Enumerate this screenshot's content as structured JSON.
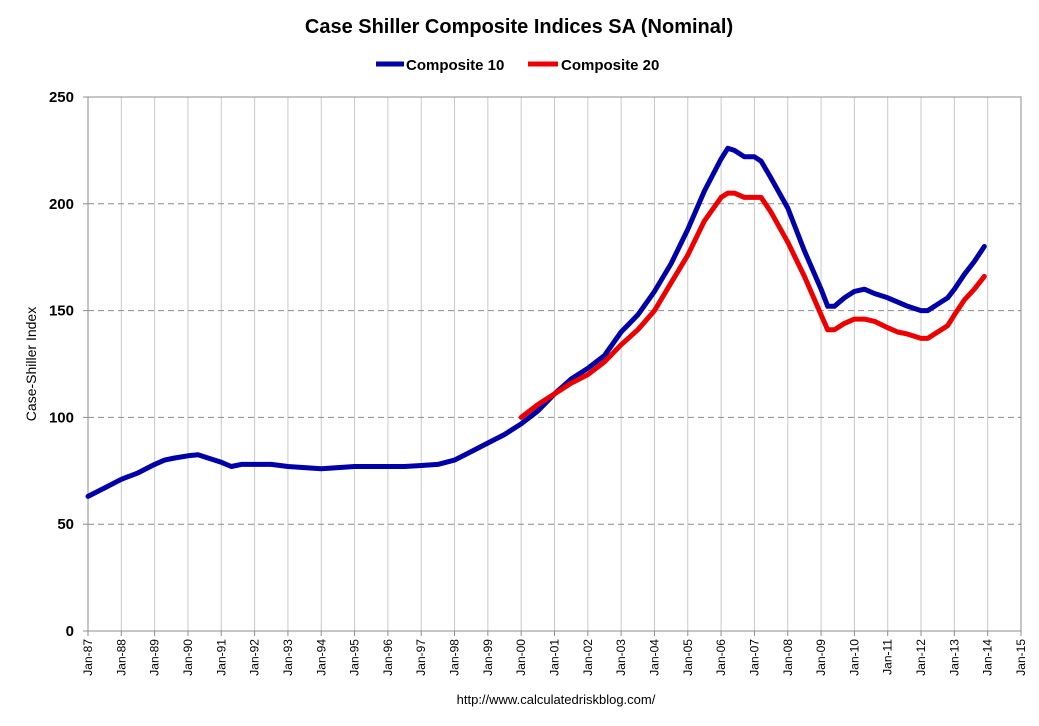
{
  "chart_data": {
    "type": "line",
    "title": "Case Shiller Composite Indices SA (Nominal)",
    "ylabel": "Case-Shiller Index",
    "xlabel": "",
    "source_note": "http://www.calculatedriskblog.com/",
    "ylim": [
      0,
      250
    ],
    "yticks": [
      "0",
      "50",
      "100",
      "150",
      "200",
      "250"
    ],
    "ytick_values": [
      0,
      50,
      100,
      150,
      200,
      250
    ],
    "xlim": [
      1987,
      2015
    ],
    "xticks": [
      "Jan-87",
      "Jan-88",
      "Jan-89",
      "Jan-90",
      "Jan-91",
      "Jan-92",
      "Jan-93",
      "Jan-94",
      "Jan-95",
      "Jan-96",
      "Jan-97",
      "Jan-98",
      "Jan-99",
      "Jan-00",
      "Jan-01",
      "Jan-02",
      "Jan-03",
      "Jan-04",
      "Jan-05",
      "Jan-06",
      "Jan-07",
      "Jan-08",
      "Jan-09",
      "Jan-10",
      "Jan-11",
      "Jan-12",
      "Jan-13",
      "Jan-14",
      "Jan-15"
    ],
    "xtick_values": [
      1987,
      1988,
      1989,
      1990,
      1991,
      1992,
      1993,
      1994,
      1995,
      1996,
      1997,
      1998,
      1999,
      2000,
      2001,
      2002,
      2003,
      2004,
      2005,
      2006,
      2007,
      2008,
      2009,
      2010,
      2011,
      2012,
      2013,
      2014,
      2015
    ],
    "grid": true,
    "legend_position": "top-center",
    "series": [
      {
        "name": "Composite 10",
        "color": "#0000aa",
        "x": [
          1987.0,
          1987.5,
          1988.0,
          1988.5,
          1989.0,
          1989.3,
          1989.6,
          1990.0,
          1990.3,
          1990.6,
          1991.0,
          1991.3,
          1991.6,
          1992.0,
          1992.5,
          1993.0,
          1993.5,
          1994.0,
          1994.5,
          1995.0,
          1995.5,
          1996.0,
          1996.5,
          1997.0,
          1997.5,
          1998.0,
          1998.5,
          1999.0,
          1999.5,
          2000.0,
          2000.5,
          2001.0,
          2001.5,
          2002.0,
          2002.5,
          2003.0,
          2003.5,
          2004.0,
          2004.5,
          2005.0,
          2005.5,
          2006.0,
          2006.2,
          2006.4,
          2006.7,
          2007.0,
          2007.2,
          2007.5,
          2008.0,
          2008.5,
          2009.0,
          2009.2,
          2009.4,
          2009.7,
          2010.0,
          2010.3,
          2010.6,
          2011.0,
          2011.3,
          2011.6,
          2012.0,
          2012.2,
          2012.5,
          2012.8,
          2013.0,
          2013.3,
          2013.6,
          2013.9
        ],
        "values": [
          63,
          67,
          71,
          74,
          78,
          80,
          81,
          82,
          82.5,
          81,
          79,
          77,
          78,
          78,
          78,
          77,
          76.5,
          76,
          76.5,
          77,
          77,
          77,
          77,
          77.5,
          78,
          80,
          84,
          88,
          92,
          97,
          103,
          111,
          118,
          123,
          129,
          140,
          148,
          159,
          172,
          188,
          206,
          221,
          226,
          225,
          222,
          222,
          220,
          212,
          198,
          178,
          160,
          152,
          152,
          156,
          159,
          160,
          158,
          156,
          154,
          152,
          150,
          150,
          153,
          156,
          160,
          167,
          173,
          180
        ]
      },
      {
        "name": "Composite 20",
        "color": "#ee0000",
        "x": [
          2000.0,
          2000.5,
          2001.0,
          2001.5,
          2002.0,
          2002.5,
          2003.0,
          2003.5,
          2004.0,
          2004.5,
          2005.0,
          2005.5,
          2006.0,
          2006.2,
          2006.4,
          2006.7,
          2007.0,
          2007.2,
          2007.5,
          2008.0,
          2008.5,
          2009.0,
          2009.2,
          2009.4,
          2009.7,
          2010.0,
          2010.3,
          2010.6,
          2011.0,
          2011.3,
          2011.6,
          2012.0,
          2012.2,
          2012.5,
          2012.8,
          2013.0,
          2013.3,
          2013.6,
          2013.9
        ],
        "values": [
          100,
          106,
          111,
          116,
          120,
          126,
          134,
          141,
          150,
          163,
          176,
          192,
          203,
          205,
          205,
          203,
          203,
          203,
          196,
          182,
          166,
          148,
          141,
          141,
          144,
          146,
          146,
          145,
          142,
          140,
          139,
          137,
          137,
          140,
          143,
          148,
          155,
          160,
          166
        ]
      }
    ]
  }
}
